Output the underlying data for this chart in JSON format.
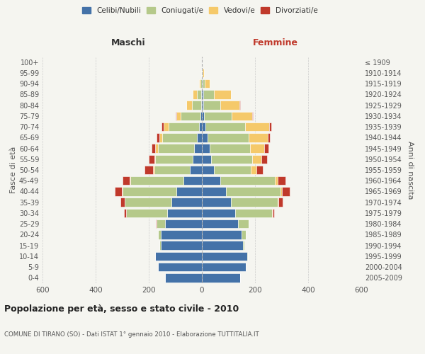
{
  "age_groups_bottom_to_top": [
    "0-4",
    "5-9",
    "10-14",
    "15-19",
    "20-24",
    "25-29",
    "30-34",
    "35-39",
    "40-44",
    "45-49",
    "50-54",
    "55-59",
    "60-64",
    "65-69",
    "70-74",
    "75-79",
    "80-84",
    "85-89",
    "90-94",
    "95-99",
    "100+"
  ],
  "birth_years_bottom_to_top": [
    "2005-2009",
    "2000-2004",
    "1995-1999",
    "1990-1994",
    "1985-1989",
    "1980-1984",
    "1975-1979",
    "1970-1974",
    "1965-1969",
    "1960-1964",
    "1955-1959",
    "1950-1954",
    "1945-1949",
    "1940-1944",
    "1935-1939",
    "1930-1934",
    "1925-1929",
    "1920-1924",
    "1915-1919",
    "1910-1914",
    "≤ 1909"
  ],
  "maschi": {
    "celibi": [
      140,
      165,
      175,
      155,
      155,
      140,
      130,
      115,
      95,
      70,
      45,
      35,
      30,
      20,
      10,
      5,
      3,
      2,
      0,
      0,
      0
    ],
    "coniugati": [
      0,
      0,
      2,
      5,
      10,
      30,
      155,
      175,
      205,
      200,
      135,
      140,
      135,
      130,
      115,
      75,
      35,
      18,
      5,
      2,
      0
    ],
    "vedovi": [
      0,
      0,
      0,
      0,
      0,
      0,
      0,
      2,
      2,
      3,
      5,
      5,
      10,
      10,
      20,
      15,
      20,
      15,
      5,
      2,
      0
    ],
    "divorziati": [
      0,
      0,
      0,
      0,
      0,
      3,
      8,
      15,
      25,
      25,
      30,
      20,
      15,
      10,
      8,
      5,
      0,
      0,
      0,
      0,
      0
    ]
  },
  "femmine": {
    "nubili": [
      145,
      165,
      170,
      155,
      150,
      135,
      125,
      110,
      90,
      70,
      45,
      35,
      30,
      22,
      12,
      8,
      5,
      5,
      2,
      0,
      0
    ],
    "coniugate": [
      0,
      0,
      2,
      5,
      15,
      40,
      140,
      175,
      205,
      205,
      140,
      155,
      150,
      155,
      150,
      105,
      65,
      40,
      8,
      2,
      0
    ],
    "vedove": [
      0,
      0,
      0,
      0,
      0,
      0,
      2,
      3,
      5,
      10,
      20,
      35,
      55,
      70,
      90,
      75,
      70,
      65,
      20,
      5,
      0
    ],
    "divorziate": [
      0,
      0,
      0,
      0,
      0,
      2,
      5,
      15,
      30,
      30,
      25,
      20,
      15,
      10,
      10,
      5,
      5,
      0,
      0,
      0,
      0
    ]
  },
  "colors": {
    "celibi": "#4472a8",
    "coniugati": "#b5c98a",
    "vedovi": "#f5c96a",
    "divorziati": "#c0392b"
  },
  "xlim": 600,
  "xticks": [
    -600,
    -400,
    -200,
    0,
    200,
    400,
    600
  ],
  "xticklabels": [
    "600",
    "400",
    "200",
    "0",
    "200",
    "400",
    "600"
  ],
  "title": "Popolazione per età, sesso e stato civile - 2010",
  "subtitle": "COMUNE DI TIRANO (SO) - Dati ISTAT 1° gennaio 2010 - Elaborazione TUTTITALIA.IT",
  "ylabel_left": "Fasce di età",
  "ylabel_right": "Anni di nascita",
  "label_maschi": "Maschi",
  "label_femmine": "Femmine",
  "legend_labels": [
    "Celibi/Nubili",
    "Coniugati/e",
    "Vedovi/e",
    "Divorziati/e"
  ],
  "bg_color": "#f5f5f0",
  "maschi_label_color": "#333333",
  "femmine_label_color": "#c0392b"
}
